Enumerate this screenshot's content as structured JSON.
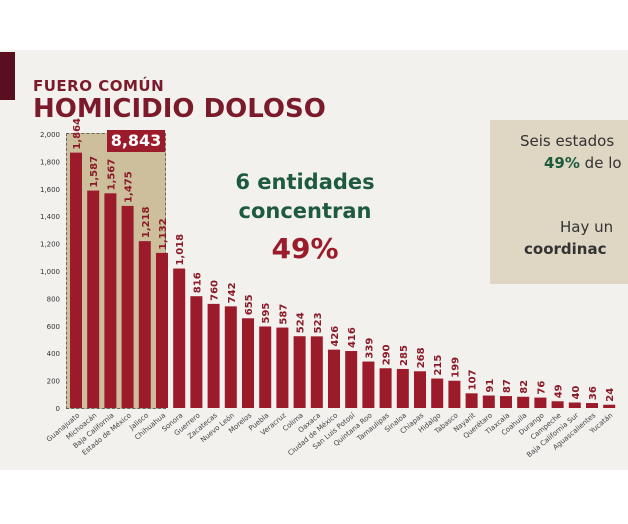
{
  "header": {
    "subtitle": "FUERO COMÚN",
    "title": "HOMICIDIO DOLOSO"
  },
  "highlight": {
    "total": "8,843",
    "line1": "6 entidades",
    "line2": "concentran",
    "percent": "49%"
  },
  "panel": {
    "line1": "Seis estados",
    "line2_bold": "49%",
    "line2_rest": " de lo",
    "line3": "Hay un",
    "line4_bold": "coordinac"
  },
  "colors": {
    "bar": "#9b1b2a",
    "highlight": "#cdbf9c",
    "green": "#1e5b3e"
  },
  "chart_data": {
    "type": "bar",
    "categories": [
      "Guanajuato",
      "Michoacán",
      "Baja California",
      "Estado de México",
      "Jalisco",
      "Chihuahua",
      "Sonora",
      "Guerrero",
      "Zacatecas",
      "Nuevo León",
      "Morelos",
      "Puebla",
      "Veracruz",
      "Colima",
      "Oaxaca",
      "Ciudad de México",
      "San Luis Potosí",
      "Quintana Roo",
      "Tamaulipas",
      "Sinaloa",
      "Chiapas",
      "Hidalgo",
      "Tabasco",
      "Nayarit",
      "Querétaro",
      "Tlaxcala",
      "Coahuila",
      "Durango",
      "Campeche",
      "Baja California Sur",
      "Aguascalientes",
      "Yucatán"
    ],
    "values": [
      1864,
      1587,
      1567,
      1475,
      1218,
      1132,
      1018,
      816,
      760,
      742,
      655,
      595,
      587,
      524,
      523,
      426,
      416,
      339,
      290,
      285,
      268,
      215,
      199,
      107,
      91,
      87,
      82,
      76,
      49,
      40,
      36,
      24
    ],
    "data_labels": [
      "1,864",
      "1,587",
      "1,567",
      "1,475",
      "1,218",
      "1,132",
      "1,018",
      "816",
      "760",
      "742",
      "655",
      "595",
      "587",
      "524",
      "523",
      "426",
      "416",
      "339",
      "290",
      "285",
      "268",
      "215",
      "199",
      "107",
      "91",
      "87",
      "82",
      "76",
      "49",
      "40",
      "36",
      "24"
    ],
    "yticks": [
      "0",
      "200",
      "400",
      "600",
      "800",
      "1,000",
      "1,200",
      "1,400",
      "1,600",
      "1,800",
      "2,000"
    ],
    "ylim": [
      0,
      2000
    ],
    "grid": false
  }
}
